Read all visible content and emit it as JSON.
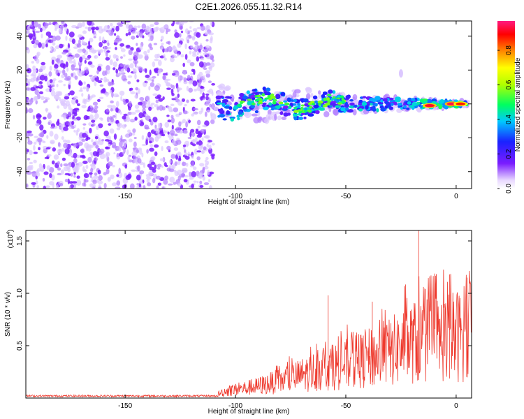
{
  "figure": {
    "title": "C2E1.2026.055.11.32.R14"
  },
  "chart_data": [
    {
      "type": "heatmap",
      "xlabel": "Height of straight line (km)",
      "ylabel": "Frequency (Hz)",
      "xlim": [
        -195,
        7
      ],
      "ylim": [
        -50,
        49
      ],
      "x_ticks": [
        -150,
        -100,
        -50,
        0
      ],
      "y_ticks": [
        -40,
        -20,
        0,
        20,
        40
      ],
      "colorbar": {
        "label": "Normalized spectral amplitude",
        "range": [
          0,
          0.97
        ],
        "ticks": [
          0.0,
          0.2,
          0.4,
          0.6,
          0.8
        ],
        "tick_labels": [
          "0.0",
          "0.2",
          "0.4",
          "0.6",
          "0.8"
        ]
      },
      "regions": [
        {
          "x_range": [
            -195,
            -110
          ],
          "y_range": [
            -50,
            49
          ],
          "description_level": 0.1
        },
        {
          "x_range": [
            -110,
            7
          ],
          "y_range": [
            -8,
            8
          ],
          "description_level": 0.3
        }
      ],
      "peaks": [
        {
          "x": -12,
          "y": -1,
          "value": 0.95
        },
        {
          "x": -2,
          "y": 0,
          "value": 0.97
        },
        {
          "x": 2,
          "y": 0,
          "value": 0.9
        },
        {
          "x": -25,
          "y": 18,
          "value": 0.05
        }
      ]
    },
    {
      "type": "line",
      "xlabel": "Height of straight line (km)",
      "ylabel": "SNR (10 * v/v)",
      "multiplier": "(x10",
      "multiplier_exp": "4",
      "multiplier_close": ")",
      "xlim": [
        -195,
        7
      ],
      "ylim": [
        0,
        1.6
      ],
      "x_ticks": [
        -150,
        -100,
        -50,
        0
      ],
      "y_ticks": [
        0.5,
        1.0,
        1.5
      ],
      "y_tick_labels": [
        "0.5",
        "1.0",
        "1.5"
      ],
      "series": [
        {
          "color": "#ee3a2e",
          "envelope": [
            {
              "x": -195,
              "y": 0.02
            },
            {
              "x": -110,
              "y": 0.03
            },
            {
              "x": -105,
              "y": 0.1
            },
            {
              "x": -90,
              "y": 0.18
            },
            {
              "x": -75,
              "y": 0.3
            },
            {
              "x": -60,
              "y": 0.45
            },
            {
              "x": -45,
              "y": 0.55
            },
            {
              "x": -30,
              "y": 0.7
            },
            {
              "x": -20,
              "y": 0.85
            },
            {
              "x": -10,
              "y": 0.9
            },
            {
              "x": 0,
              "y": 0.95
            },
            {
              "x": 7,
              "y": 1.0
            }
          ],
          "spikes": [
            {
              "x": -58,
              "y": 0.98
            },
            {
              "x": -38,
              "y": 0.92
            },
            {
              "x": -17,
              "y": 1.62
            },
            {
              "x": -3,
              "y": 1.18
            },
            {
              "x": 5,
              "y": 1.15
            }
          ]
        }
      ]
    }
  ]
}
